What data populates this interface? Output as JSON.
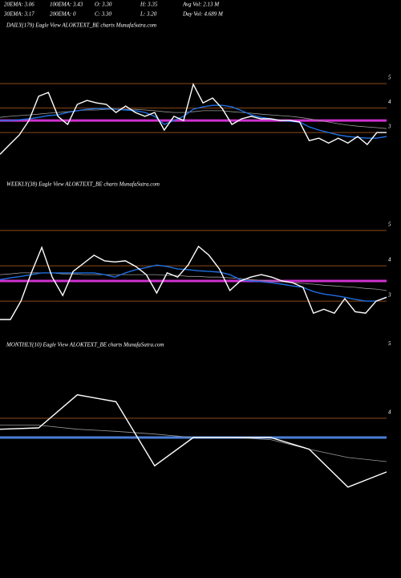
{
  "header": [
    [
      "20EMA: 3.06",
      "100EMA: 3.43",
      "O: 3.30",
      "H: 3.35",
      "Avg Vol: 2.13 M"
    ],
    [
      "30EMA: 3.17",
      "200EMA: 0",
      "C: 3.30",
      "L: 3.20",
      "Day Vol: 4.689 M"
    ]
  ],
  "chart_data": [
    {
      "type": "line",
      "title": "DAILY(179) Eagle  View  ALOKTEXT_BE charts MunafaSutra.com",
      "ylim": [
        1.2,
        7.1
      ],
      "yticks": [
        3,
        4,
        5
      ],
      "hlines": [
        {
          "value": 5,
          "color": "#8b4a1a"
        },
        {
          "value": 4,
          "color": "#8b4a1a"
        },
        {
          "value": 3,
          "color": "#8b4a1a"
        },
        {
          "value": 3.49,
          "color": "#d030d0"
        }
      ],
      "series": [
        {
          "color": "#9a9a9a",
          "values": [
            3.62,
            3.66,
            3.69,
            3.72,
            3.75,
            3.79,
            3.82,
            3.85,
            3.89,
            3.92,
            3.92,
            3.95,
            3.95,
            3.95,
            3.95,
            3.92,
            3.89,
            3.85,
            3.82,
            3.82,
            3.85,
            3.89,
            3.89,
            3.89,
            3.85,
            3.82,
            3.79,
            3.75,
            3.72,
            3.69,
            3.66,
            3.62,
            3.56,
            3.49,
            3.43,
            3.36,
            3.3,
            3.26,
            3.23,
            3.2,
            3.16
          ]
        },
        {
          "color": "#1f6fe0",
          "values": [
            3.49,
            3.49,
            3.52,
            3.56,
            3.62,
            3.69,
            3.72,
            3.82,
            3.89,
            3.95,
            3.98,
            3.98,
            3.95,
            3.92,
            3.89,
            3.82,
            3.66,
            3.33,
            3.49,
            3.66,
            3.95,
            4.05,
            4.11,
            4.11,
            4.05,
            3.89,
            3.72,
            3.62,
            3.56,
            3.49,
            3.46,
            3.43,
            3.23,
            3.1,
            3.0,
            2.9,
            2.84,
            2.8,
            2.77,
            2.77,
            2.84
          ]
        },
        {
          "color": "#ffffff",
          "values": [
            2.11,
            2.51,
            2.9,
            3.49,
            4.48,
            4.64,
            3.66,
            3.33,
            4.15,
            4.31,
            4.21,
            4.15,
            3.82,
            4.08,
            3.82,
            3.66,
            3.82,
            3.1,
            3.66,
            3.49,
            4.97,
            4.21,
            4.41,
            3.98,
            3.33,
            3.56,
            3.66,
            3.56,
            3.56,
            3.49,
            3.49,
            3.43,
            2.67,
            2.77,
            2.57,
            2.77,
            2.57,
            2.84,
            2.51,
            3.0,
            3.0
          ]
        }
      ]
    },
    {
      "type": "line",
      "title": "WEEKLY(38) Eagle  View  ALOKTEXT_BE charts MunafaSutra.com",
      "ylim": [
        1.98,
        6.07
      ],
      "yticks": [
        3,
        4,
        5
      ],
      "hlines": [
        {
          "value": 5,
          "color": "#8b4a1a"
        },
        {
          "value": 4,
          "color": "#8b4a1a"
        },
        {
          "value": 3,
          "color": "#8b4a1a"
        },
        {
          "value": 3.57,
          "color": "#d030d0"
        }
      ],
      "series": [
        {
          "color": "#9a9a9a",
          "values": [
            3.75,
            3.77,
            3.8,
            3.8,
            3.8,
            3.8,
            3.77,
            3.77,
            3.75,
            3.75,
            3.75,
            3.75,
            3.75,
            3.75,
            3.75,
            3.75,
            3.73,
            3.73,
            3.7,
            3.7,
            3.68,
            3.68,
            3.66,
            3.64,
            3.61,
            3.59,
            3.57,
            3.55,
            3.52,
            3.5,
            3.48,
            3.45,
            3.43,
            3.41,
            3.39,
            3.36,
            3.34,
            3.3
          ]
        },
        {
          "color": "#1f6fe0",
          "values": [
            3.61,
            3.66,
            3.7,
            3.75,
            3.8,
            3.8,
            3.8,
            3.8,
            3.8,
            3.8,
            3.75,
            3.68,
            3.8,
            3.89,
            3.95,
            4.02,
            3.98,
            3.91,
            3.89,
            3.86,
            3.84,
            3.82,
            3.75,
            3.61,
            3.57,
            3.55,
            3.52,
            3.48,
            3.43,
            3.39,
            3.27,
            3.2,
            3.16,
            3.11,
            3.05,
            3.0,
            3.0,
            3.11
          ]
        },
        {
          "color": "#ffffff",
          "values": [
            2.48,
            2.48,
            3.0,
            3.8,
            4.52,
            3.68,
            3.16,
            3.84,
            4.07,
            4.3,
            4.14,
            4.11,
            4.14,
            3.98,
            3.75,
            3.23,
            3.8,
            3.68,
            4.02,
            4.55,
            4.3,
            3.91,
            3.3,
            3.57,
            3.68,
            3.75,
            3.68,
            3.57,
            3.52,
            3.39,
            2.66,
            2.77,
            2.66,
            3.07,
            2.7,
            2.66,
            3.0,
            3.11
          ]
        }
      ]
    },
    {
      "type": "line",
      "title": "MONTHLY(10) Eagle  View  ALOKTEXT_BE charts MunafaSutra.com",
      "ylim": [
        2.38,
        5.06
      ],
      "yticks": [
        4,
        5
      ],
      "hlines": [
        {
          "value": 4,
          "color": "#8b4a1a"
        },
        {
          "value": 3.72,
          "color": "#4a7fd8"
        }
      ],
      "series": [
        {
          "color": "#9a9a9a",
          "values": [
            3.9,
            3.9,
            3.84,
            3.81,
            3.77,
            3.72,
            3.72,
            3.69,
            3.55,
            3.43,
            3.37
          ]
        },
        {
          "color": "#ffffff",
          "values": [
            3.84,
            3.86,
            4.34,
            4.24,
            3.31,
            3.72,
            3.72,
            3.72,
            3.55,
            3.0,
            3.22
          ]
        }
      ]
    }
  ]
}
